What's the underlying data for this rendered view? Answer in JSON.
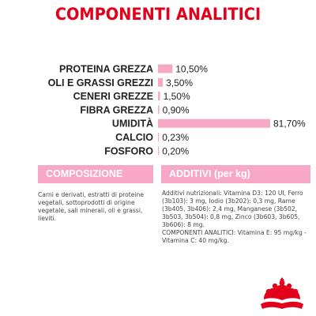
{
  "title": "COMPONENTI ANALITICI",
  "colors": {
    "brand_red": "#e2001a",
    "bar_pink": "#f6a9c5",
    "header_pink": "#f7a8c6",
    "label_text": "#222222",
    "body_text": "#444444"
  },
  "chart_data": {
    "type": "bar",
    "orientation": "horizontal",
    "categories": [
      "PROTEINA GREZZA",
      "OLI E GRASSI GREZZI",
      "CENERI GREZZE",
      "FIBRA GREZZA",
      "UMIDITÀ",
      "CALCIO",
      "FOSFORO"
    ],
    "values": [
      10.5,
      3.5,
      1.5,
      0.9,
      81.7,
      0.23,
      0.2
    ],
    "value_labels": [
      "10,50%",
      "3,50%",
      "1,50%",
      "0,90%",
      "81,70%",
      "0,23%",
      "0,20%"
    ],
    "xlim": [
      0,
      81.7
    ],
    "grid": false,
    "legend": "none"
  },
  "composition": {
    "header": "COMPOSIZIONE",
    "text": "Carni e derivati, estratti di proteine vegetali, sottoprodotti di origine vegetale, sali minerali, oli e grassi, lieviti."
  },
  "additives": {
    "header": "ADDITIVI (per kg)",
    "text": "Additivi nutrizionali: Vitamina D3: 120 UI, Ferro (3b103): 3 mg, Iodio (3b202): 0,3 mg, Rame (3b405, 3b406): 2,4 mg, Manganese (3b502, 3b503, 3b504): 0,8 mg, Zinco (3b603, 3b605, 3b606): 8 mg.\nCOMPONENTI ANALITICI: Vitamina E: 95 mg/kg - Vitamina C: 40 mg/kg."
  },
  "logo": {
    "icon": "royal-canin-crown-icon"
  }
}
